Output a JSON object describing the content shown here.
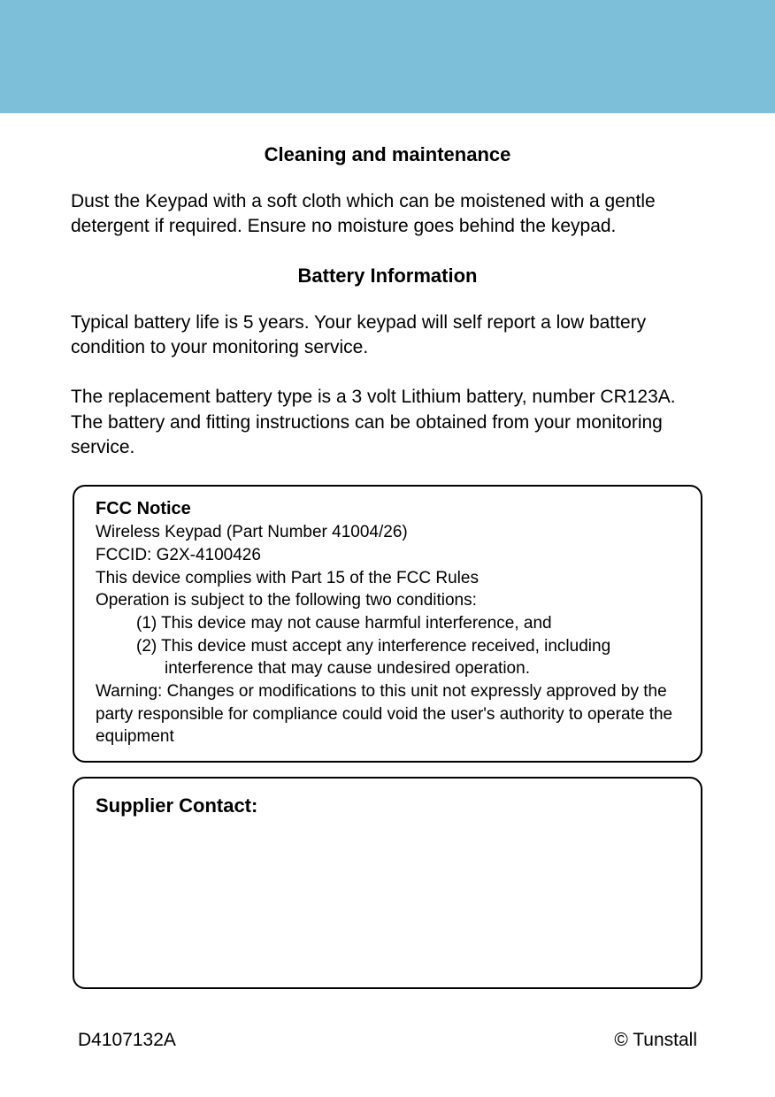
{
  "colors": {
    "header_background": "#7dbfd8",
    "page_background": "#ffffff",
    "text": "#000000",
    "border": "#000000"
  },
  "typography": {
    "font_family": "Arial, Helvetica, sans-serif",
    "title_fontsize": 22,
    "body_fontsize": 21,
    "notice_fontsize": 19
  },
  "sections": {
    "cleaning": {
      "title": "Cleaning and maintenance",
      "text": "Dust the Keypad with a soft cloth which can be moistened with a gentle detergent if required. Ensure no moisture goes behind the keypad."
    },
    "battery": {
      "title": "Battery Information",
      "text1": "Typical battery life is 5 years.  Your keypad will self report a low battery condition to your monitoring service.",
      "text2": "The replacement battery type is a 3 volt Lithium battery, number CR123A. The battery and fitting instructions can be obtained from your monitoring service."
    }
  },
  "fcc_notice": {
    "title": "FCC Notice",
    "line1": "Wireless Keypad (Part Number 41004/26)",
    "line2": "FCCID: G2X-4100426",
    "line3": "This device complies with Part 15 of the FCC Rules",
    "line4": "Operation is subject to the following two conditions:",
    "item1": "(1)  This device may not cause harmful interference, and",
    "item2": "(2)  This device must accept any interference received, including interference that may cause undesired operation.",
    "warning": "Warning: Changes or modifications to this unit not expressly approved by the party responsible for compliance could void the user's authority to operate the equipment"
  },
  "supplier": {
    "title": "Supplier Contact:"
  },
  "footer": {
    "doc_number": "D4107132A",
    "copyright": "© Tunstall"
  }
}
